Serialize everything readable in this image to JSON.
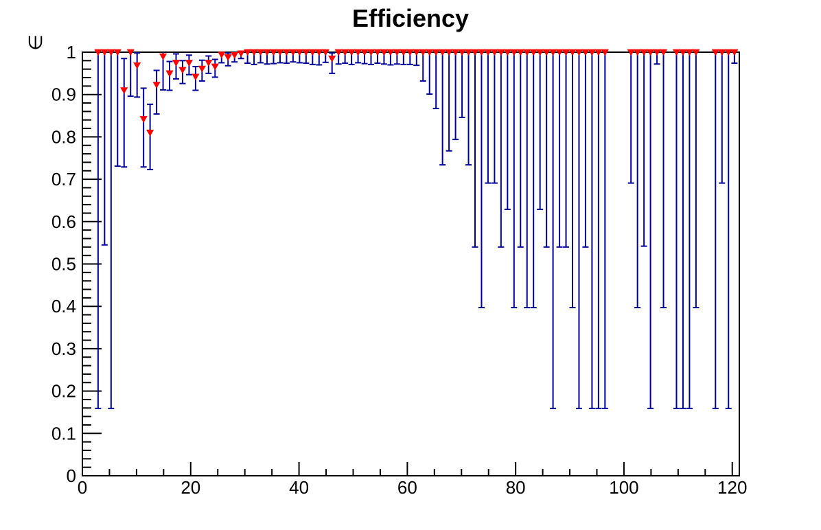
{
  "title": "Efficiency",
  "chart_data": {
    "type": "scatter",
    "title": "Efficiency",
    "xlabel": "",
    "ylabel": "∈",
    "marker": "triangle-down",
    "grid": false,
    "legend": null,
    "xlim": [
      0,
      121.3
    ],
    "ylim": [
      0,
      1
    ],
    "x_ticks": [
      0,
      20,
      40,
      60,
      80,
      100,
      120
    ],
    "x_tick_labels": [
      "0",
      "20",
      "40",
      "60",
      "80",
      "100",
      "120"
    ],
    "x_minor_step": 5,
    "y_ticks": [
      0,
      0.1,
      0.2,
      0.3,
      0.4,
      0.5,
      0.6,
      0.7,
      0.8,
      0.9,
      1
    ],
    "y_tick_labels": [
      "0",
      "0.1",
      "0.2",
      "0.3",
      "0.4",
      "0.5",
      "0.6",
      "0.7",
      "0.8",
      "0.9",
      "1"
    ],
    "y_minor_step": 0.02,
    "colors": {
      "marker": "#ff0000",
      "error_bar": "#00009a",
      "frame": "#000000",
      "background": "#ffffff"
    },
    "points_format": [
      "x",
      "y",
      "err_low_y",
      "err_high_y"
    ],
    "points": [
      [
        2.9,
        1.0,
        0.159,
        1
      ],
      [
        4.1,
        1.0,
        0.545,
        1
      ],
      [
        5.3,
        1.0,
        0.159,
        1
      ],
      [
        6.5,
        1.0,
        0.731,
        1
      ],
      [
        7.7,
        0.91,
        0.729,
        0.985
      ],
      [
        8.9,
        1.0,
        0.896,
        1
      ],
      [
        10.1,
        0.969,
        0.894,
        0.998
      ],
      [
        11.3,
        0.842,
        0.729,
        0.915
      ],
      [
        12.5,
        0.81,
        0.723,
        0.877
      ],
      [
        13.7,
        0.923,
        0.854,
        0.957
      ],
      [
        14.9,
        0.99,
        0.911,
        1
      ],
      [
        16.1,
        0.95,
        0.91,
        0.978
      ],
      [
        17.3,
        0.975,
        0.937,
        0.996
      ],
      [
        18.5,
        0.958,
        0.926,
        0.98
      ],
      [
        19.7,
        0.975,
        0.947,
        0.993
      ],
      [
        20.9,
        0.942,
        0.91,
        0.966
      ],
      [
        22.1,
        0.961,
        0.932,
        0.981
      ],
      [
        23.3,
        0.975,
        0.95,
        0.991
      ],
      [
        24.5,
        0.966,
        0.941,
        0.983
      ],
      [
        25.7,
        0.994,
        0.975,
        1
      ],
      [
        26.9,
        0.988,
        0.968,
        0.998
      ],
      [
        28.1,
        0.993,
        0.977,
        1
      ],
      [
        29.3,
        0.997,
        0.985,
        1
      ],
      [
        30.5,
        1.0,
        0.974,
        1
      ],
      [
        31.7,
        1.0,
        0.971,
        1
      ],
      [
        32.9,
        1.0,
        0.975,
        1
      ],
      [
        34.1,
        1.0,
        0.972,
        1
      ],
      [
        35.3,
        1.0,
        0.973,
        1
      ],
      [
        36.5,
        1.0,
        0.975,
        1
      ],
      [
        37.7,
        1.0,
        0.974,
        1
      ],
      [
        38.9,
        1.0,
        0.977,
        1
      ],
      [
        40.1,
        1.0,
        0.975,
        1
      ],
      [
        41.3,
        1.0,
        0.974,
        1
      ],
      [
        42.5,
        1.0,
        0.971,
        1
      ],
      [
        43.7,
        1.0,
        0.97,
        1
      ],
      [
        44.9,
        1.0,
        0.976,
        1
      ],
      [
        46.1,
        0.985,
        0.95,
        0.998
      ],
      [
        47.3,
        1.0,
        0.972,
        1
      ],
      [
        48.5,
        1.0,
        0.974,
        1
      ],
      [
        49.7,
        1.0,
        0.971,
        1
      ],
      [
        50.9,
        1.0,
        0.975,
        1
      ],
      [
        52.1,
        1.0,
        0.973,
        1
      ],
      [
        53.3,
        1.0,
        0.971,
        1
      ],
      [
        54.5,
        1.0,
        0.974,
        1
      ],
      [
        55.7,
        1.0,
        0.972,
        1
      ],
      [
        56.9,
        1.0,
        0.97,
        1
      ],
      [
        58.1,
        1.0,
        0.972,
        1
      ],
      [
        59.3,
        1.0,
        0.971,
        1
      ],
      [
        60.5,
        1.0,
        0.971,
        1
      ],
      [
        61.7,
        1.0,
        0.969,
        1
      ],
      [
        62.9,
        1.0,
        0.932,
        1
      ],
      [
        64.1,
        1.0,
        0.901,
        1
      ],
      [
        65.3,
        1.0,
        0.867,
        1
      ],
      [
        66.5,
        1.0,
        0.734,
        1
      ],
      [
        67.7,
        1.0,
        0.767,
        1
      ],
      [
        68.9,
        1.0,
        0.794,
        1
      ],
      [
        70.1,
        1.0,
        0.846,
        1
      ],
      [
        71.3,
        1.0,
        0.734,
        1
      ],
      [
        72.5,
        1.0,
        0.54,
        1
      ],
      [
        73.7,
        1.0,
        0.397,
        1
      ],
      [
        74.9,
        1.0,
        0.691,
        1
      ],
      [
        76.1,
        1.0,
        0.691,
        1
      ],
      [
        77.3,
        1.0,
        0.54,
        1
      ],
      [
        78.5,
        1.0,
        0.629,
        1
      ],
      [
        79.7,
        1.0,
        0.397,
        1
      ],
      [
        80.9,
        1.0,
        0.54,
        1
      ],
      [
        82.1,
        1.0,
        0.397,
        1
      ],
      [
        83.3,
        1.0,
        0.397,
        1
      ],
      [
        84.5,
        1.0,
        0.629,
        1
      ],
      [
        85.7,
        1.0,
        0.54,
        1
      ],
      [
        86.9,
        1.0,
        0.159,
        1
      ],
      [
        88.1,
        1.0,
        0.54,
        1
      ],
      [
        89.3,
        1.0,
        0.54,
        1
      ],
      [
        90.5,
        1.0,
        0.397,
        1
      ],
      [
        91.7,
        1.0,
        0.159,
        1
      ],
      [
        92.9,
        1.0,
        0.54,
        1
      ],
      [
        94.1,
        1.0,
        0.159,
        1
      ],
      [
        95.3,
        1.0,
        0.159,
        1
      ],
      [
        96.5,
        1.0,
        0.159,
        1
      ],
      [
        101.3,
        1.0,
        0.691,
        1
      ],
      [
        102.5,
        1.0,
        0.397,
        1
      ],
      [
        103.7,
        1.0,
        0.542,
        1
      ],
      [
        104.9,
        1.0,
        0.159,
        1
      ],
      [
        106.1,
        1.0,
        0.972,
        1
      ],
      [
        107.3,
        1.0,
        0.397,
        1
      ],
      [
        109.7,
        1.0,
        0.159,
        1
      ],
      [
        110.9,
        1.0,
        0.159,
        1
      ],
      [
        112.1,
        1.0,
        0.159,
        1
      ],
      [
        113.3,
        1.0,
        0.397,
        1
      ],
      [
        116.9,
        1.0,
        0.159,
        1
      ],
      [
        118.1,
        1.0,
        0.691,
        1
      ],
      [
        119.3,
        1.0,
        0.159,
        1
      ],
      [
        120.4,
        1.0,
        0.974,
        1
      ]
    ]
  }
}
